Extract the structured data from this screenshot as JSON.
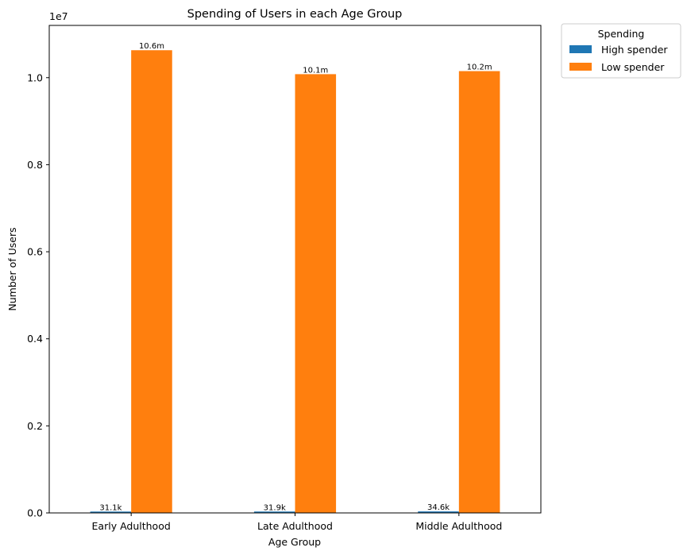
{
  "chart_data": {
    "type": "bar",
    "title": "Spending of Users in each Age Group",
    "xlabel": "Age Group",
    "ylabel": "Number of Users",
    "y_offset_label": "1e7",
    "categories": [
      "Early Adulthood",
      "Late Adulthood",
      "Middle Adulthood"
    ],
    "series": [
      {
        "name": "High spender",
        "color": "#1f77b4",
        "values": [
          31100,
          31900,
          34600
        ],
        "labels": [
          "31.1k",
          "31.9k",
          "34.6k"
        ]
      },
      {
        "name": "Low spender",
        "color": "#ff7f0e",
        "values": [
          10630000,
          10080000,
          10150000
        ],
        "labels": [
          "10.6m",
          "10.1m",
          "10.2m"
        ]
      }
    ],
    "ylim": [
      0,
      11200000
    ],
    "yticks": [
      0,
      2000000,
      4000000,
      6000000,
      8000000,
      10000000
    ],
    "ytick_labels": [
      "0.0",
      "0.2",
      "0.4",
      "0.6",
      "0.8",
      "1.0"
    ],
    "legend": {
      "title": "Spending",
      "placement": "outside-top-right"
    },
    "grid": false
  }
}
